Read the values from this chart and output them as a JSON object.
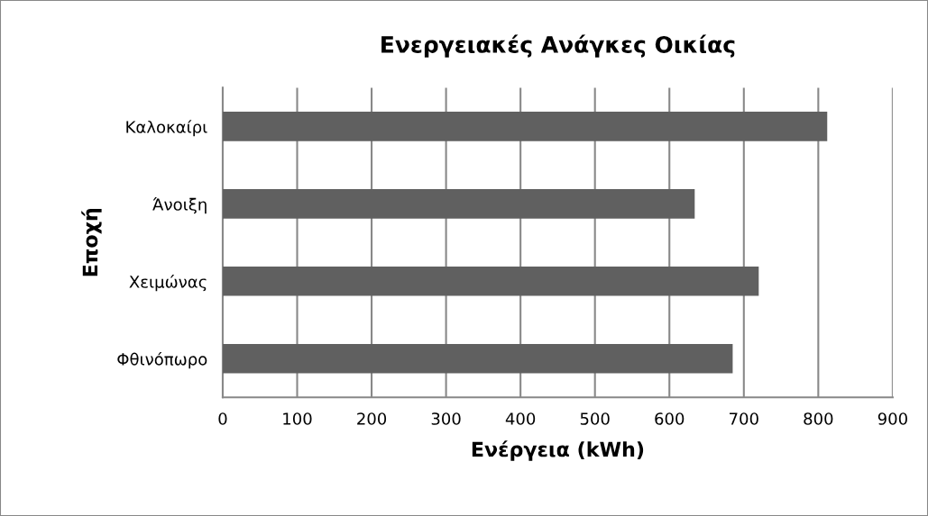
{
  "chart_data": {
    "type": "bar",
    "orientation": "horizontal",
    "title": "Ενεργειακές Ανάγκες Οικίας",
    "xlabel": "Ενέργεια (kWh)",
    "ylabel": "Εποχή",
    "categories": [
      "Καλοκαίρι",
      "Άνοιξη",
      "Χειμώνας",
      "Φθινόπωρο"
    ],
    "values": [
      812,
      634,
      720,
      685
    ],
    "color": "#606060",
    "xlim": [
      0,
      900
    ],
    "xticks": [
      0,
      100,
      200,
      300,
      400,
      500,
      600,
      700,
      800,
      900
    ],
    "grid": "x"
  }
}
